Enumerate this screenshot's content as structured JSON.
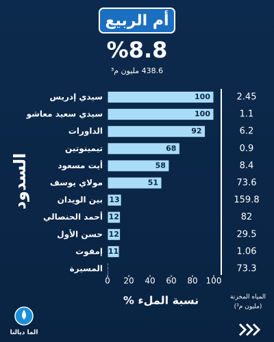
{
  "header": {
    "title": "أم الربيع",
    "percent": "%8.8",
    "volume": "438.6 مليون م³"
  },
  "chart_data": {
    "type": "bar",
    "orientation": "horizontal",
    "categories": [
      "سيدي إدريس",
      "سيدي سعيد معاشو",
      "الداورات",
      "تيمينوتين",
      "أيت مسعود",
      "مولاي يوسف",
      "بين الويدان",
      "أحمد الحنصالي",
      "حسن الأول",
      "إمفوت",
      "المسيرة"
    ],
    "values": [
      100,
      100,
      92,
      68,
      58,
      51,
      13,
      12,
      12,
      11,
      1
    ],
    "color": "#a9dcf6",
    "xlim": [
      0,
      100
    ],
    "xticks": [
      0,
      20,
      40,
      60,
      80,
      100
    ],
    "xlabel": "نسبة الملء %",
    "ylabel": "السدود",
    "stored_values": [
      2.45,
      1.1,
      6.2,
      0.9,
      8.4,
      73.6,
      159.8,
      82,
      29.5,
      1.06,
      73.3
    ],
    "stored_label": [
      "المياه المخزنة",
      "(مليون م³)"
    ]
  },
  "logo": "الما ديالنا"
}
